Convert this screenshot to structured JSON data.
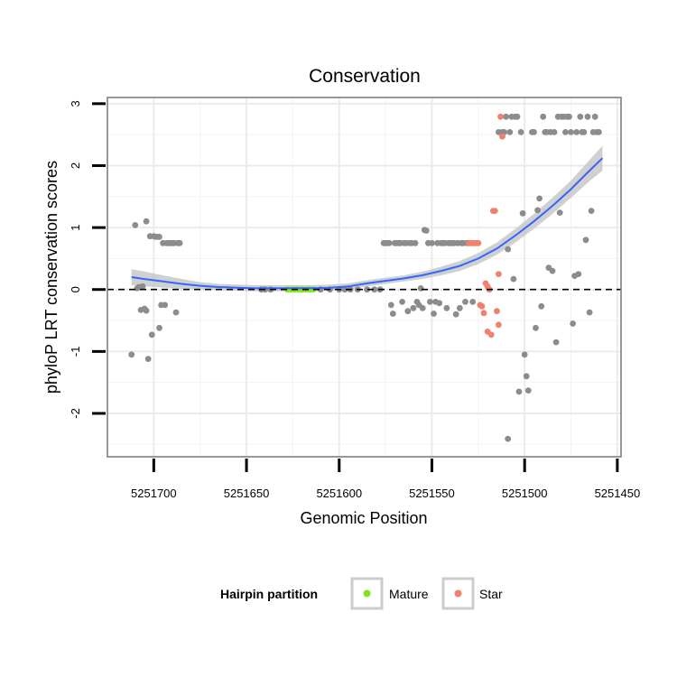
{
  "chart_data": {
    "type": "scatter",
    "title": "Conservation",
    "xlabel": "Genomic Position",
    "ylabel": "phyloP LRT conservation scores",
    "x_reversed": true,
    "xlim": [
      5251725,
      5251448
    ],
    "ylim": [
      -2.7,
      3.1
    ],
    "x_ticks": [
      5251700,
      5251650,
      5251600,
      5251550,
      5251500,
      5251450
    ],
    "x_tick_labels": [
      "5251700",
      "5251650",
      "5251600",
      "5251550",
      "5251500",
      "5251450"
    ],
    "y_ticks": [
      -2,
      -1,
      0,
      1,
      2,
      3
    ],
    "y_tick_labels": [
      "-2",
      "-1",
      "0",
      "1",
      "2",
      "3"
    ],
    "reference_line": {
      "y": 0,
      "style": "dashed"
    },
    "legend": {
      "title": "Hairpin partition",
      "position": "bottom",
      "entries": [
        {
          "label": "Mature",
          "color": "#7fe51a"
        },
        {
          "label": "Star",
          "color": "#f08070"
        }
      ]
    },
    "colors": {
      "other": "#8c8c8c",
      "mature": "#7fe51a",
      "star": "#f08070",
      "smooth": "#3366ff",
      "band": "#c8c8c8"
    },
    "series": [
      {
        "name": "Other",
        "points": [
          [
            5251712,
            -1.05
          ],
          [
            5251710,
            1.04
          ],
          [
            5251709,
            0.02
          ],
          [
            5251708,
            0.04
          ],
          [
            5251707,
            -0.33
          ],
          [
            5251706,
            0.05
          ],
          [
            5251705,
            -0.31
          ],
          [
            5251704,
            1.1
          ],
          [
            5251704,
            -0.34
          ],
          [
            5251703,
            -1.12
          ],
          [
            5251702,
            0.86
          ],
          [
            5251701,
            -0.73
          ],
          [
            5251700,
            0.86
          ],
          [
            5251699,
            0.85
          ],
          [
            5251698,
            0.85
          ],
          [
            5251697,
            -0.62
          ],
          [
            5251697,
            0.85
          ],
          [
            5251696,
            -0.25
          ],
          [
            5251695,
            0.75
          ],
          [
            5251694,
            -0.25
          ],
          [
            5251693,
            0.75
          ],
          [
            5251692,
            0.75
          ],
          [
            5251691,
            0.75
          ],
          [
            5251690,
            0.75
          ],
          [
            5251689,
            0.75
          ],
          [
            5251688,
            -0.37
          ],
          [
            5251687,
            0.75
          ],
          [
            5251686,
            0.75
          ],
          [
            5251576,
            0.75
          ],
          [
            5251575,
            0.75
          ],
          [
            5251574,
            0.75
          ],
          [
            5251573,
            0.75
          ],
          [
            5251572,
            -0.25
          ],
          [
            5251571,
            -0.39
          ],
          [
            5251570,
            0.75
          ],
          [
            5251569,
            0.75
          ],
          [
            5251568,
            0.75
          ],
          [
            5251567,
            0.75
          ],
          [
            5251566,
            -0.2
          ],
          [
            5251565,
            0.75
          ],
          [
            5251564,
            0.75
          ],
          [
            5251563,
            -0.35
          ],
          [
            5251562,
            0.75
          ],
          [
            5251561,
            0.75
          ],
          [
            5251560,
            -0.3
          ],
          [
            5251559,
            0.75
          ],
          [
            5251558,
            -0.2
          ],
          [
            5251557,
            -0.25
          ],
          [
            5251556,
            0.02
          ],
          [
            5251555,
            -0.3
          ],
          [
            5251554,
            0.96
          ],
          [
            5251553,
            0.95
          ],
          [
            5251552,
            0.75
          ],
          [
            5251551,
            -0.2
          ],
          [
            5251550,
            0.75
          ],
          [
            5251549,
            -0.39
          ],
          [
            5251548,
            -0.2
          ],
          [
            5251547,
            0.75
          ],
          [
            5251546,
            -0.22
          ],
          [
            5251545,
            0.75
          ],
          [
            5251544,
            0.75
          ],
          [
            5251543,
            0.75
          ],
          [
            5251542,
            -0.3
          ],
          [
            5251541,
            0.75
          ],
          [
            5251540,
            0.75
          ],
          [
            5251539,
            0.75
          ],
          [
            5251538,
            0.75
          ],
          [
            5251537,
            -0.4
          ],
          [
            5251536,
            0.75
          ],
          [
            5251535,
            -0.3
          ],
          [
            5251534,
            0.75
          ],
          [
            5251533,
            0.75
          ],
          [
            5251532,
            -0.2
          ],
          [
            5251531,
            0.75
          ],
          [
            5251528,
            -0.2
          ],
          [
            5251527,
            0.75
          ],
          [
            5251514,
            2.54
          ],
          [
            5251512,
            2.54
          ],
          [
            5251511,
            2.54
          ],
          [
            5251510,
            2.79
          ],
          [
            5251509,
            0.65
          ],
          [
            5251509,
            -2.41
          ],
          [
            5251508,
            2.54
          ],
          [
            5251507,
            2.79
          ],
          [
            5251506,
            0.17
          ],
          [
            5251505,
            2.79
          ],
          [
            5251504,
            2.79
          ],
          [
            5251503,
            -1.65
          ],
          [
            5251502,
            2.54
          ],
          [
            5251501,
            1.23
          ],
          [
            5251500,
            -1.05
          ],
          [
            5251499,
            -1.4
          ],
          [
            5251498,
            -1.63
          ],
          [
            5251496,
            2.54
          ],
          [
            5251495,
            2.54
          ],
          [
            5251494,
            -0.62
          ],
          [
            5251493,
            1.28
          ],
          [
            5251492,
            1.47
          ],
          [
            5251491,
            -0.27
          ],
          [
            5251490,
            2.79
          ],
          [
            5251489,
            2.54
          ],
          [
            5251488,
            2.54
          ],
          [
            5251487,
            0.35
          ],
          [
            5251486,
            2.54
          ],
          [
            5251485,
            0.3
          ],
          [
            5251484,
            2.54
          ],
          [
            5251483,
            -0.85
          ],
          [
            5251482,
            2.79
          ],
          [
            5251481,
            1.24
          ],
          [
            5251480,
            2.79
          ],
          [
            5251479,
            2.79
          ],
          [
            5251478,
            2.54
          ],
          [
            5251477,
            2.79
          ],
          [
            5251476,
            2.79
          ],
          [
            5251475,
            2.54
          ],
          [
            5251474,
            -0.55
          ],
          [
            5251473,
            0.22
          ],
          [
            5251472,
            2.54
          ],
          [
            5251471,
            0.25
          ],
          [
            5251470,
            2.79
          ],
          [
            5251469,
            2.54
          ],
          [
            5251468,
            2.54
          ],
          [
            5251467,
            0.8
          ],
          [
            5251466,
            2.79
          ],
          [
            5251465,
            -0.37
          ],
          [
            5251464,
            1.27
          ],
          [
            5251463,
            2.54
          ],
          [
            5251462,
            2.79
          ],
          [
            5251461,
            2.54
          ],
          [
            5251460,
            2.54
          ],
          [
            5251642,
            0.0
          ],
          [
            5251640,
            0.0
          ],
          [
            5251637,
            0.0
          ],
          [
            5251610,
            0.0
          ],
          [
            5251605,
            0.0
          ],
          [
            5251600,
            0.0
          ],
          [
            5251597,
            0.0
          ],
          [
            5251594,
            0.0
          ],
          [
            5251590,
            0.0
          ],
          [
            5251585,
            0.0
          ],
          [
            5251581,
            0.0
          ],
          [
            5251578,
            0.0
          ]
        ]
      },
      {
        "name": "Mature",
        "points": [
          [
            5251628,
            0.0
          ],
          [
            5251626,
            0.0
          ],
          [
            5251624,
            0.0
          ],
          [
            5251622,
            0.0
          ],
          [
            5251620,
            0.0
          ],
          [
            5251618,
            0.0
          ],
          [
            5251616,
            0.0
          ],
          [
            5251614,
            0.0
          ]
        ]
      },
      {
        "name": "Star",
        "points": [
          [
            5251530,
            0.75
          ],
          [
            5251529,
            0.75
          ],
          [
            5251528,
            0.75
          ],
          [
            5251527,
            0.75
          ],
          [
            5251526,
            0.75
          ],
          [
            5251525,
            0.75
          ],
          [
            5251524,
            -0.25
          ],
          [
            5251523,
            -0.27
          ],
          [
            5251522,
            -0.38
          ],
          [
            5251521,
            0.1
          ],
          [
            5251520,
            0.05
          ],
          [
            5251520,
            -0.68
          ],
          [
            5251519,
            0.0
          ],
          [
            5251518,
            -0.73
          ],
          [
            5251517,
            1.27
          ],
          [
            5251516,
            1.27
          ],
          [
            5251515,
            -0.35
          ],
          [
            5251514,
            -0.57
          ],
          [
            5251514,
            0.25
          ],
          [
            5251513,
            2.79
          ],
          [
            5251512,
            2.47
          ]
        ]
      }
    ],
    "smooth_curve": {
      "x": [
        5251712,
        5251705,
        5251695,
        5251685,
        5251675,
        5251665,
        5251655,
        5251645,
        5251635,
        5251625,
        5251615,
        5251605,
        5251595,
        5251585,
        5251575,
        5251565,
        5251555,
        5251545,
        5251535,
        5251525,
        5251515,
        5251505,
        5251495,
        5251485,
        5251475,
        5251465,
        5251458
      ],
      "y": [
        0.2,
        0.17,
        0.13,
        0.09,
        0.06,
        0.04,
        0.03,
        0.02,
        0.02,
        0.02,
        0.02,
        0.03,
        0.05,
        0.1,
        0.14,
        0.18,
        0.23,
        0.3,
        0.38,
        0.5,
        0.66,
        0.87,
        1.1,
        1.35,
        1.62,
        1.92,
        2.12
      ],
      "ci_halfwidth": [
        0.13,
        0.12,
        0.1,
        0.08,
        0.06,
        0.05,
        0.05,
        0.05,
        0.05,
        0.05,
        0.05,
        0.05,
        0.05,
        0.05,
        0.05,
        0.05,
        0.06,
        0.07,
        0.08,
        0.09,
        0.1,
        0.11,
        0.12,
        0.13,
        0.14,
        0.17,
        0.2
      ]
    }
  }
}
